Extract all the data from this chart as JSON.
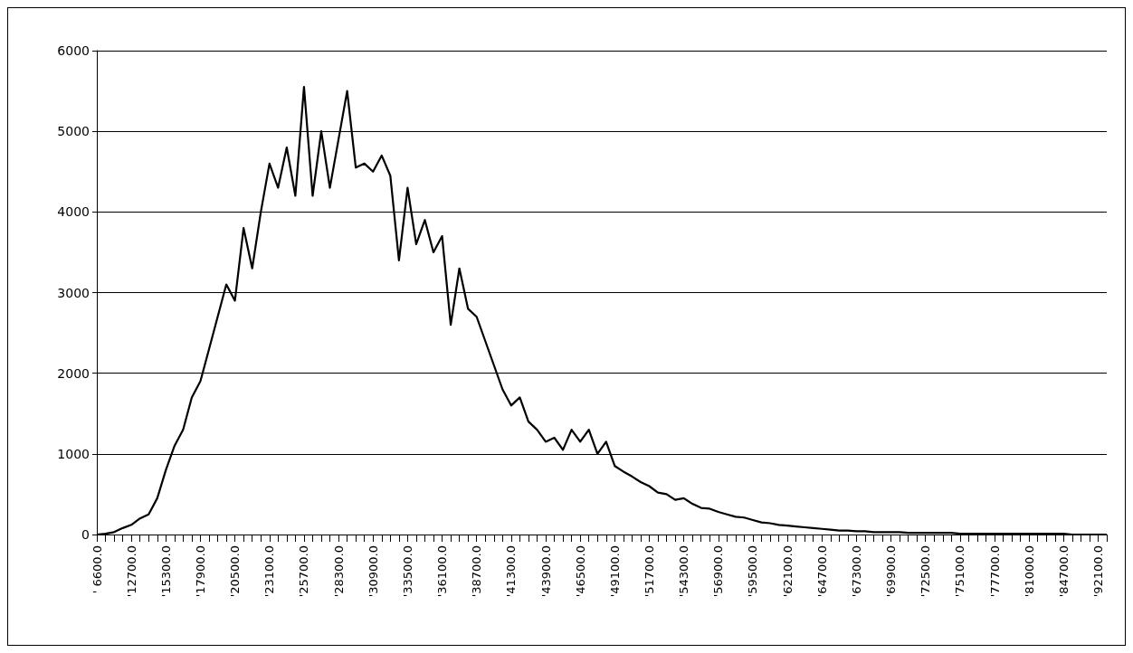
{
  "chart_data": {
    "type": "line",
    "categories": [
      "' 6600.0",
      null,
      null,
      null,
      "'12700.0",
      null,
      null,
      null,
      "'15300.0",
      null,
      null,
      null,
      "'17900.0",
      null,
      null,
      null,
      "'20500.0",
      null,
      null,
      null,
      "'23100.0",
      null,
      null,
      null,
      "'25700.0",
      null,
      null,
      null,
      "'28300.0",
      null,
      null,
      null,
      "'30900.0",
      null,
      null,
      null,
      "'33500.0",
      null,
      null,
      null,
      "'36100.0",
      null,
      null,
      null,
      "'38700.0",
      null,
      null,
      null,
      "'41300.0",
      null,
      null,
      null,
      "'43900.0",
      null,
      null,
      null,
      "'46500.0",
      null,
      null,
      null,
      "'49100.0",
      null,
      null,
      null,
      "'51700.0",
      null,
      null,
      null,
      "'54300.0",
      null,
      null,
      null,
      "'56900.0",
      null,
      null,
      null,
      "'59500.0",
      null,
      null,
      null,
      "'62100.0",
      null,
      null,
      null,
      "'64700.0",
      null,
      null,
      null,
      "'67300.0",
      null,
      null,
      null,
      "'69900.0",
      null,
      null,
      null,
      "'72500.0",
      null,
      null,
      null,
      "'75100.0",
      null,
      null,
      null,
      "'77700.0",
      null,
      null,
      null,
      "'81000.0",
      null,
      null,
      null,
      "'84700.0",
      null,
      null,
      null,
      "'92100.0",
      null
    ],
    "series": [
      {
        "color": "#000000",
        "values": [
          0,
          10,
          30,
          80,
          120,
          200,
          250,
          450,
          800,
          1100,
          1300,
          1700,
          1900,
          2300,
          2700,
          3100,
          2900,
          3800,
          3300,
          4000,
          4600,
          4300,
          4800,
          4200,
          5550,
          4200,
          5000,
          4300,
          4900,
          5500,
          4550,
          4600,
          4500,
          4700,
          4450,
          3400,
          4300,
          3600,
          3900,
          3500,
          3700,
          2600,
          3300,
          2800,
          2700,
          2400,
          2100,
          1800,
          1600,
          1700,
          1400,
          1300,
          1150,
          1200,
          1050,
          1300,
          1150,
          1300,
          1000,
          1150,
          850,
          780,
          720,
          650,
          600,
          520,
          500,
          430,
          450,
          380,
          330,
          320,
          280,
          250,
          220,
          210,
          180,
          150,
          140,
          120,
          110,
          100,
          90,
          80,
          70,
          60,
          50,
          50,
          40,
          40,
          30,
          30,
          30,
          30,
          20,
          20,
          20,
          20,
          20,
          20,
          10,
          10,
          10,
          10,
          10,
          10,
          10,
          10,
          10,
          10,
          10,
          10,
          10,
          0,
          0,
          0,
          0,
          0
        ]
      }
    ],
    "ylim": [
      0,
      6000
    ],
    "yticks": [
      0,
      1000,
      2000,
      3000,
      4000,
      5000,
      6000
    ],
    "grid": "y",
    "marker": "none",
    "line_style": "solid"
  }
}
